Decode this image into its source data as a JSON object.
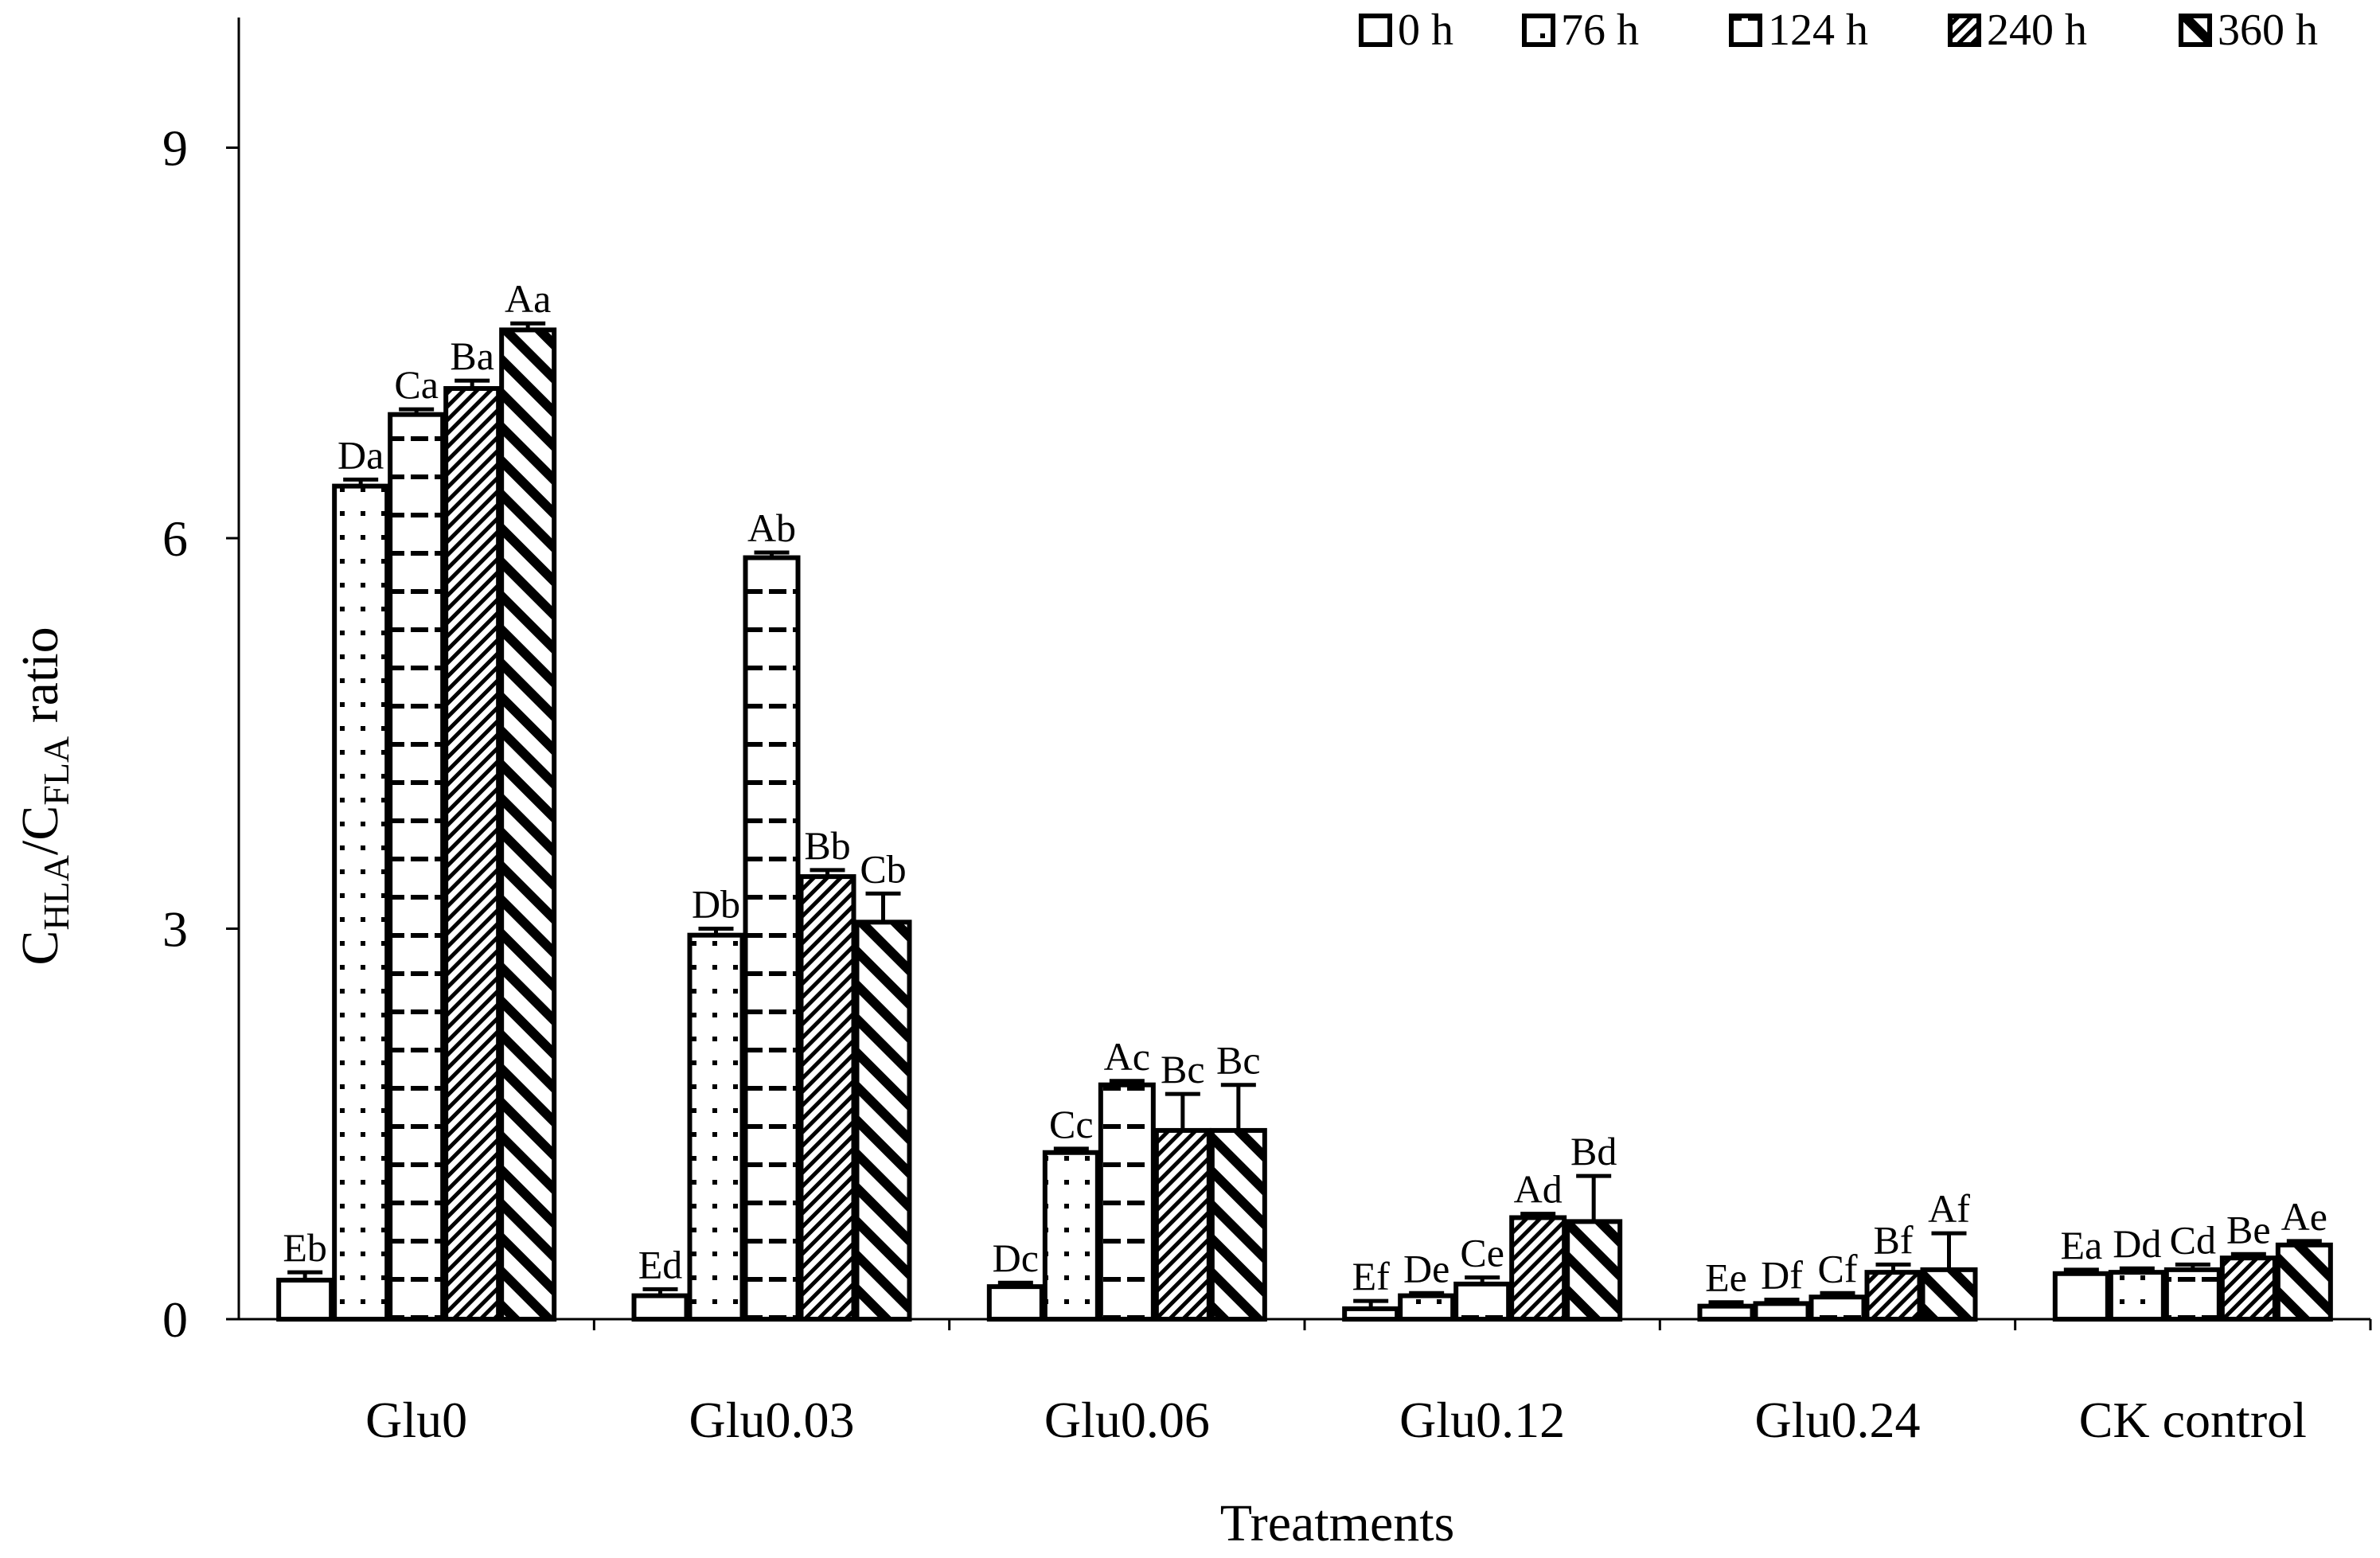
{
  "chart_data": {
    "type": "bar",
    "title": "",
    "xlabel": "Treatments",
    "ylabel": {
      "base1": "C",
      "sub1": "HLA",
      "slash": "/",
      "base2": "C",
      "sub2": "FLA",
      "suffix": " ratio"
    },
    "ylim": [
      0,
      10
    ],
    "yticks": [
      "0",
      "3",
      "6",
      "9"
    ],
    "ytick_values": [
      0,
      3,
      6,
      9
    ],
    "legend_position": "top-right",
    "categories": [
      "Glu0",
      "Glu0.03",
      "Glu0.06",
      "Glu0.12",
      "Glu0.24",
      "CK control"
    ],
    "series": [
      {
        "name": "0 h",
        "pattern": "blank",
        "values": [
          0.3,
          0.18,
          0.25,
          0.08,
          0.1,
          0.35
        ],
        "errors": [
          0.06,
          0.05,
          0.03,
          0.06,
          0.03,
          0.03
        ],
        "labels": [
          "Eb",
          "Ed",
          "Dc",
          "Ef",
          "Ee",
          "Ea"
        ]
      },
      {
        "name": "76 h",
        "pattern": "dots",
        "values": [
          6.4,
          2.95,
          1.28,
          0.18,
          0.12,
          0.36
        ],
        "errors": [
          0.05,
          0.05,
          0.03,
          0.02,
          0.03,
          0.03
        ],
        "labels": [
          "Da",
          "Db",
          "Cc",
          "De",
          "Df",
          "Dd"
        ]
      },
      {
        "name": "124 h",
        "pattern": "dashes",
        "values": [
          6.95,
          5.85,
          1.8,
          0.27,
          0.17,
          0.38
        ],
        "errors": [
          0.04,
          0.04,
          0.03,
          0.05,
          0.03,
          0.04
        ],
        "labels": [
          "Ca",
          "Ab",
          "Ac",
          "Ce",
          "Cf",
          "Cd"
        ]
      },
      {
        "name": "240 h",
        "pattern": "diag-dense",
        "values": [
          7.15,
          3.4,
          1.45,
          0.78,
          0.36,
          0.47
        ],
        "errors": [
          0.06,
          0.05,
          0.28,
          0.03,
          0.06,
          0.03
        ],
        "labels": [
          "Ba",
          "Bb",
          "Bc",
          "Ad",
          "Bf",
          "Be"
        ]
      },
      {
        "name": "360 h",
        "pattern": "diag-thick",
        "values": [
          7.6,
          3.05,
          1.45,
          0.75,
          0.38,
          0.57
        ],
        "errors": [
          0.05,
          0.22,
          0.35,
          0.35,
          0.28,
          0.03
        ],
        "labels": [
          "Aa",
          "Cb",
          "Bc",
          "Bd",
          "Af",
          "Ae"
        ]
      }
    ]
  }
}
